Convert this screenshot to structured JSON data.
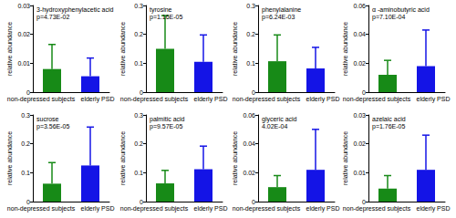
{
  "chart_data": [
    {
      "type": "bar",
      "title": "3-hydroxyphenylacetic acid",
      "annotation": "p=4.73E-02",
      "categories": [
        "non-depressed subjects",
        "elderly PSD"
      ],
      "values": [
        0.008,
        0.0055
      ],
      "errors": [
        0.0085,
        0.0063
      ],
      "colors": [
        "#178a17",
        "#1414e6"
      ],
      "ylabel": "relative abundance",
      "ylim": [
        0,
        0.03
      ],
      "yticks": [
        0,
        0.01,
        0.02,
        0.03
      ],
      "grid": false
    },
    {
      "type": "bar",
      "title": "tyrosine",
      "annotation": "p=1.16E-05",
      "categories": [
        "non-depressed subjects",
        "elderly PSD"
      ],
      "values": [
        0.15,
        0.105
      ],
      "errors": [
        0.115,
        0.093
      ],
      "colors": [
        "#178a17",
        "#1414e6"
      ],
      "ylabel": "relative abundance",
      "ylim": [
        0,
        0.3
      ],
      "yticks": [
        0,
        0.1,
        0.2,
        0.3
      ],
      "grid": false
    },
    {
      "type": "bar",
      "title": "phenylalanine",
      "annotation": "p=6.24E-03",
      "categories": [
        "non-depressed subjects",
        "elderly PSD"
      ],
      "values": [
        0.107,
        0.082
      ],
      "errors": [
        0.091,
        0.073
      ],
      "colors": [
        "#178a17",
        "#1414e6"
      ],
      "ylabel": "relative abundance",
      "ylim": [
        0,
        0.3
      ],
      "yticks": [
        0,
        0.1,
        0.2,
        0.3
      ],
      "grid": false
    },
    {
      "type": "bar",
      "title": "α -aminobutyric acid",
      "annotation": "p=7.10E-04",
      "categories": [
        "non-depressed subjects",
        "elderly PSD"
      ],
      "values": [
        0.012,
        0.018
      ],
      "errors": [
        0.01,
        0.025
      ],
      "colors": [
        "#178a17",
        "#1414e6"
      ],
      "ylabel": "relative abundance",
      "ylim": [
        0,
        0.06
      ],
      "yticks": [
        0,
        0.02,
        0.04,
        0.06
      ],
      "grid": false
    },
    {
      "type": "bar",
      "title": "sucrose",
      "annotation": "p=3.56E-05",
      "categories": [
        "non-depressed subjects",
        "elderly PSD"
      ],
      "values": [
        0.062,
        0.125
      ],
      "errors": [
        0.073,
        0.133
      ],
      "colors": [
        "#178a17",
        "#1414e6"
      ],
      "ylabel": "relative abundance",
      "ylim": [
        0,
        0.3
      ],
      "yticks": [
        0,
        0.1,
        0.2,
        0.3
      ],
      "grid": false
    },
    {
      "type": "bar",
      "title": "palmitic acid",
      "annotation": "p=9.57E-05",
      "categories": [
        "non-depressed subjects",
        "elderly PSD"
      ],
      "values": [
        0.063,
        0.112
      ],
      "errors": [
        0.045,
        0.08
      ],
      "colors": [
        "#178a17",
        "#1414e6"
      ],
      "ylabel": "relative abundance",
      "ylim": [
        0,
        0.3
      ],
      "yticks": [
        0,
        0.1,
        0.2,
        0.3
      ],
      "grid": false
    },
    {
      "type": "bar",
      "title": "glyceric acid",
      "annotation": "4.02E-04",
      "categories": [
        "non-depressed subjects",
        "elderly PSD"
      ],
      "values": [
        0.01,
        0.022
      ],
      "errors": [
        0.008,
        0.028
      ],
      "colors": [
        "#178a17",
        "#1414e6"
      ],
      "ylabel": "relative abundance",
      "ylim": [
        0,
        0.06
      ],
      "yticks": [
        0,
        0.02,
        0.04,
        0.06
      ],
      "grid": false
    },
    {
      "type": "bar",
      "title": "azelaic acid",
      "annotation": "p=1.76E-05",
      "categories": [
        "non-depressed subjects",
        "elderly PSD"
      ],
      "values": [
        0.0045,
        0.011
      ],
      "errors": [
        0.0045,
        0.012
      ],
      "colors": [
        "#178a17",
        "#1414e6"
      ],
      "ylabel": "relative abundance",
      "ylim": [
        0,
        0.03
      ],
      "yticks": [
        0,
        0.01,
        0.02,
        0.03
      ],
      "grid": false
    }
  ]
}
